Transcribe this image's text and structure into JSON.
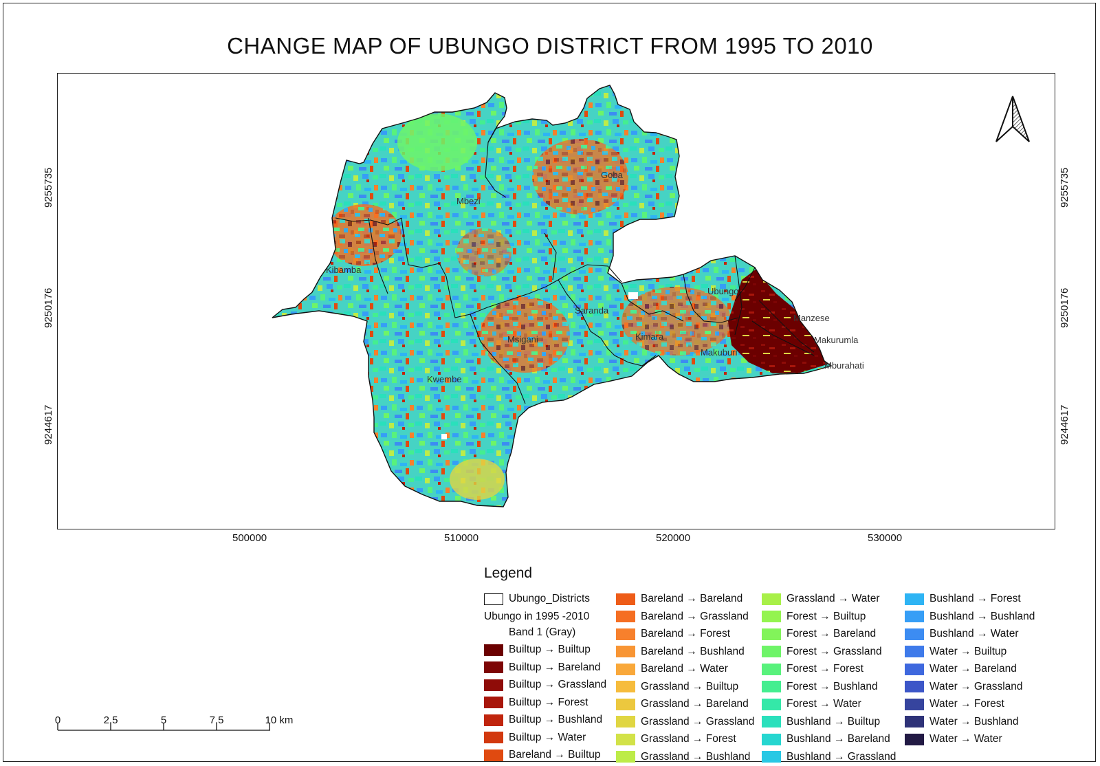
{
  "title": "CHANGE MAP OF UBUNGO DISTRICT FROM 1995 TO 2010",
  "map": {
    "place_labels": [
      "Goba",
      "Mbezi",
      "Kibamba",
      "Ubungo",
      "Saranda",
      "Msigani",
      "Kimara",
      "Manzese",
      "Makurumla",
      "Makuburi",
      "Mburahati",
      "Kwembe"
    ],
    "y_ticks": [
      "9255735",
      "9250176",
      "9244617"
    ],
    "x_ticks": [
      "500000",
      "510000",
      "520000",
      "530000"
    ],
    "north_arrow_icon": "north-arrow-icon"
  },
  "legend": {
    "title": "Legend",
    "districts_label": "Ubungo_Districts",
    "raster_label": "Ubungo in 1995 -2010",
    "band_label": "Band 1 (Gray)",
    "items": [
      {
        "label": "Builtup → Builtup",
        "color": "#6b0000"
      },
      {
        "label": "Builtup → Bareland",
        "color": "#7d0505"
      },
      {
        "label": "Builtup → Grassland",
        "color": "#8f0c08"
      },
      {
        "label": "Builtup → Forest",
        "color": "#a8160b"
      },
      {
        "label": "Builtup → Bushland",
        "color": "#c0250d"
      },
      {
        "label": "Builtup → Water",
        "color": "#d2380e"
      },
      {
        "label": "Bareland → Builtup",
        "color": "#e04a10"
      },
      {
        "label": "Bareland → Bareland",
        "color": "#ee5c18"
      },
      {
        "label": "Bareland → Grassland",
        "color": "#f56e22"
      },
      {
        "label": "Bareland → Forest",
        "color": "#f7802c"
      },
      {
        "label": "Bareland → Bushland",
        "color": "#f89534"
      },
      {
        "label": "Bareland → Water",
        "color": "#f9a83a"
      },
      {
        "label": "Grassland → Builtup",
        "color": "#f6bc3c"
      },
      {
        "label": "Grassland → Bareland",
        "color": "#ecc83e"
      },
      {
        "label": "Grassland → Grassland",
        "color": "#e0d642"
      },
      {
        "label": "Grassland → Forest",
        "color": "#d2e248"
      },
      {
        "label": "Grassland → Bushland",
        "color": "#bdec48"
      },
      {
        "label": "Grassland → Water",
        "color": "#a8f048"
      },
      {
        "label": "Forest → Builtup",
        "color": "#94f450"
      },
      {
        "label": "Forest → Bareland",
        "color": "#82f45a"
      },
      {
        "label": "Forest → Grassland",
        "color": "#6ef468"
      },
      {
        "label": "Forest → Forest",
        "color": "#58f27c"
      },
      {
        "label": "Forest → Bushland",
        "color": "#44ee90"
      },
      {
        "label": "Forest → Water",
        "color": "#34e8a8"
      },
      {
        "label": "Bushland → Builtup",
        "color": "#2ae0bc"
      },
      {
        "label": "Bushland → Bareland",
        "color": "#26d6d0"
      },
      {
        "label": "Bushland → Grassland",
        "color": "#28c8e4"
      },
      {
        "label": "Bushland → Forest",
        "color": "#2eb4f4"
      },
      {
        "label": "Bushland → Bushland",
        "color": "#369ef6"
      },
      {
        "label": "Bushland → Water",
        "color": "#3c8cf2"
      },
      {
        "label": "Water → Builtup",
        "color": "#3e7aea"
      },
      {
        "label": "Water → Bareland",
        "color": "#3e68de"
      },
      {
        "label": "Water → Grassland",
        "color": "#3c56c8"
      },
      {
        "label": "Water → Forest",
        "color": "#36449e"
      },
      {
        "label": "Water → Bushland",
        "color": "#2e3278"
      },
      {
        "label": "Water → Water",
        "color": "#221a44"
      }
    ]
  },
  "scalebar": {
    "labels": [
      "0",
      "2.5",
      "5",
      "7.5",
      "10 km"
    ]
  }
}
